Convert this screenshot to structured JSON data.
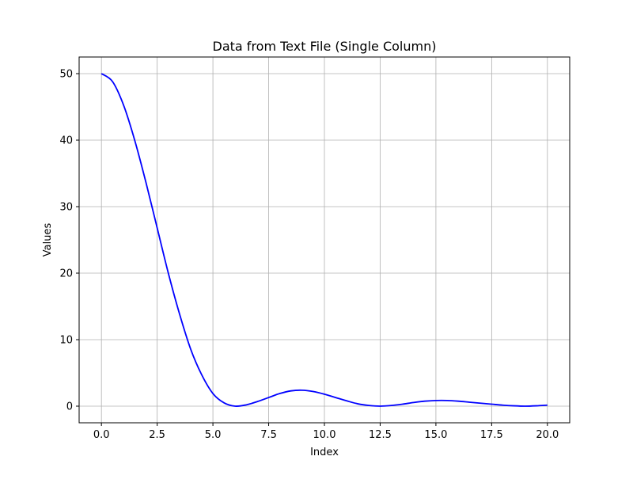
{
  "chart_data": {
    "type": "line",
    "title": "Data from Text File (Single Column)",
    "xlabel": "Index",
    "ylabel": "Values",
    "xlim": [
      -1.0,
      21.0
    ],
    "ylim": [
      -2.5,
      52.5
    ],
    "xticks": [
      0,
      2.5,
      5,
      7.5,
      10,
      12.5,
      15,
      17.5,
      20
    ],
    "xtick_labels": [
      "0.0",
      "2.5",
      "5.0",
      "7.5",
      "10.0",
      "12.5",
      "15.0",
      "17.5",
      "20.0"
    ],
    "yticks": [
      0,
      10,
      20,
      30,
      40,
      50
    ],
    "ytick_labels": [
      "0",
      "10",
      "20",
      "30",
      "40",
      "50"
    ],
    "grid": true,
    "series": [
      {
        "color": "#0000ff",
        "x": [
          0,
          0.5,
          1.0,
          1.5,
          2.0,
          2.5,
          3.0,
          3.5,
          4.0,
          4.5,
          5.0,
          5.5,
          6.0,
          6.5,
          7.0,
          7.5,
          8.0,
          8.5,
          9.0,
          9.5,
          10.0,
          10.5,
          11.0,
          11.5,
          12.0,
          12.5,
          13.0,
          13.5,
          14.0,
          14.5,
          15.0,
          15.5,
          16.0,
          16.5,
          17.0,
          17.5,
          18.0,
          18.5,
          19.0,
          19.5,
          20.0
        ],
        "y": [
          50.0,
          48.8,
          45.2,
          39.9,
          33.6,
          26.8,
          20.0,
          13.9,
          8.6,
          4.7,
          1.9,
          0.5,
          0.0,
          0.2,
          0.7,
          1.3,
          1.9,
          2.3,
          2.4,
          2.2,
          1.8,
          1.3,
          0.8,
          0.35,
          0.1,
          0.0,
          0.1,
          0.3,
          0.55,
          0.75,
          0.85,
          0.85,
          0.75,
          0.6,
          0.45,
          0.3,
          0.15,
          0.05,
          0.0,
          0.05,
          0.15
        ]
      }
    ]
  }
}
